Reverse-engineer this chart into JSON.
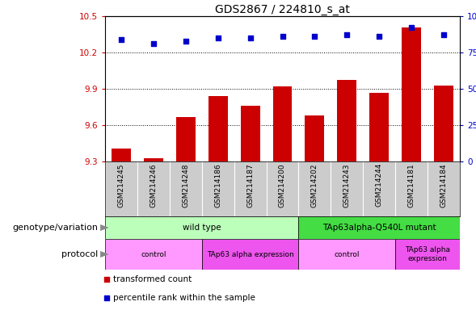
{
  "title": "GDS2867 / 224810_s_at",
  "samples": [
    "GSM214245",
    "GSM214246",
    "GSM214248",
    "GSM214186",
    "GSM214187",
    "GSM214200",
    "GSM214202",
    "GSM214243",
    "GSM214244",
    "GSM214181",
    "GSM214184"
  ],
  "transformed_count": [
    9.41,
    9.33,
    9.67,
    9.84,
    9.76,
    9.92,
    9.68,
    9.97,
    9.87,
    10.41,
    9.93
  ],
  "percentile_rank": [
    84,
    81,
    83,
    85,
    85,
    86,
    86,
    87,
    86,
    92,
    87
  ],
  "ylim_left": [
    9.3,
    10.5
  ],
  "ylim_right": [
    0,
    100
  ],
  "bar_color": "#cc0000",
  "dot_color": "#0000cc",
  "grid_color": "black",
  "title_fontsize": 10,
  "tick_fontsize": 7.5,
  "label_fontsize": 8,
  "genotype_groups": [
    {
      "label": "wild type",
      "start": 0,
      "end": 5,
      "color": "#bbffbb"
    },
    {
      "label": "TAp63alpha-Q540L mutant",
      "start": 6,
      "end": 10,
      "color": "#44dd44"
    }
  ],
  "protocol_groups": [
    {
      "label": "control",
      "start": 0,
      "end": 2,
      "color": "#ff99ff"
    },
    {
      "label": "TAp63 alpha expression",
      "start": 3,
      "end": 5,
      "color": "#ee55ee"
    },
    {
      "label": "control",
      "start": 6,
      "end": 8,
      "color": "#ff99ff"
    },
    {
      "label": "TAp63 alpha\nexpression",
      "start": 9,
      "end": 10,
      "color": "#ee55ee"
    }
  ],
  "legend_items": [
    {
      "color": "#cc0000",
      "label": "transformed count"
    },
    {
      "color": "#0000cc",
      "label": "percentile rank within the sample"
    }
  ],
  "yticks_left": [
    9.3,
    9.6,
    9.9,
    10.2,
    10.5
  ],
  "yticks_right": [
    0,
    25,
    50,
    75,
    100
  ],
  "background_color": "#ffffff",
  "sample_area_color": "#cccccc"
}
